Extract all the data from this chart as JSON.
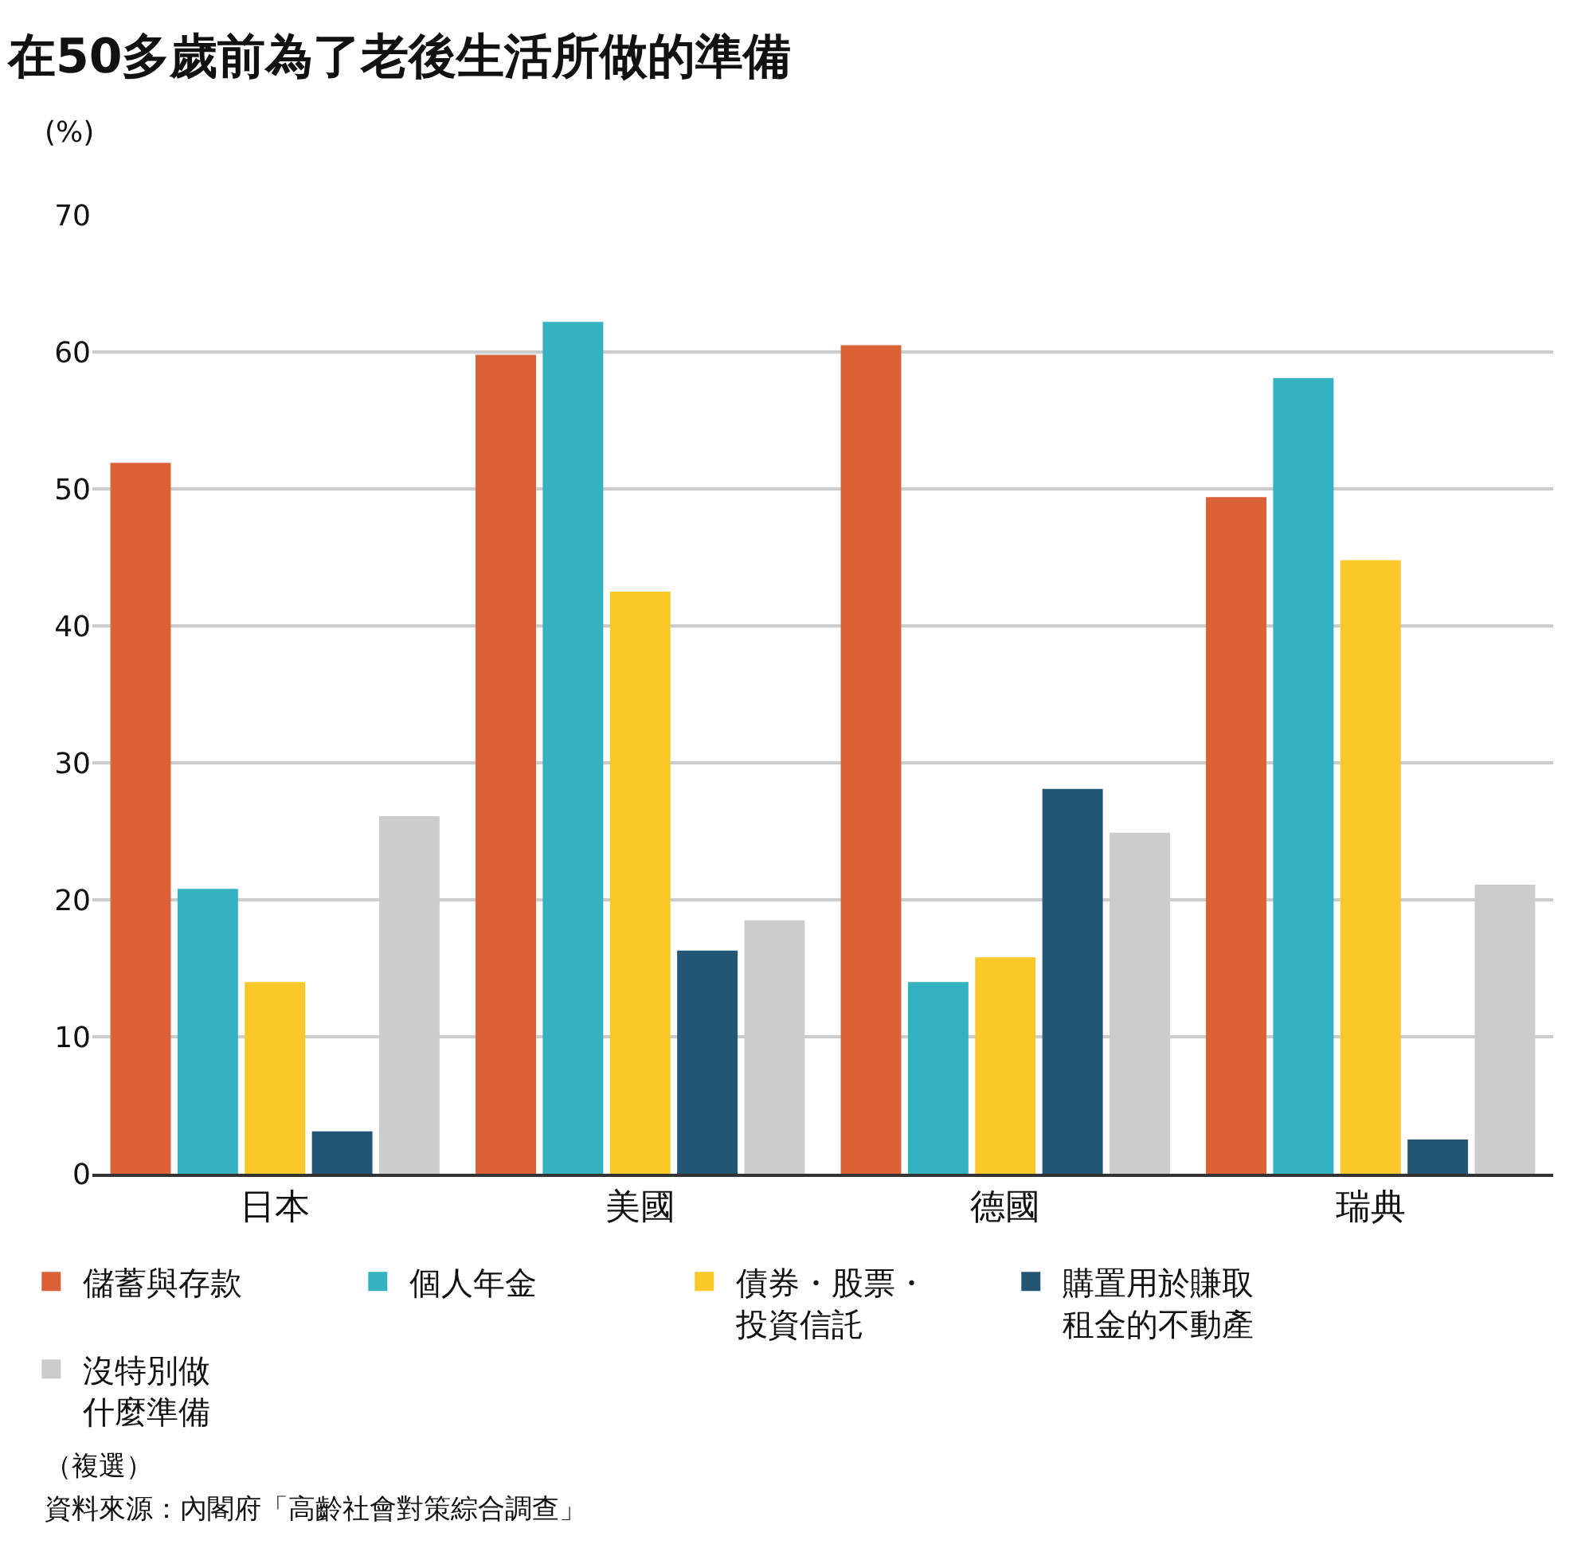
{
  "chart_data": {
    "type": "bar",
    "title": "在50多歲前為了老後生活所做的準備",
    "ylabel": "(%)",
    "categories": [
      "日本",
      "美國",
      "德國",
      "瑞典"
    ],
    "series": [
      {
        "name": "儲蓄與存款",
        "color": "#db6136",
        "values": [
          51.9,
          59.8,
          60.5,
          49.4
        ]
      },
      {
        "name": "個人年金",
        "color": "#33b2c0",
        "values": [
          20.8,
          62.2,
          14.0,
          58.1
        ]
      },
      {
        "name": "債券・股票・投資信託",
        "color": "#f8c928",
        "values": [
          14.0,
          42.5,
          15.8,
          44.8
        ]
      },
      {
        "name": "購置用於賺取租金的不動產",
        "color": "#245675",
        "values": [
          3.1,
          16.3,
          28.1,
          2.5
        ]
      },
      {
        "name": "沒特別做什麼準備",
        "color": "#cccccc",
        "values": [
          26.1,
          18.5,
          24.9,
          21.1
        ]
      }
    ],
    "ylim": [
      0,
      70
    ],
    "yticks": [
      0,
      10,
      20,
      30,
      40,
      50,
      60,
      70
    ],
    "grid": "y",
    "legend": "bottom",
    "annotations": [
      "（複選）",
      "資料來源：內閣府「高齡社會對策綜合調查」"
    ]
  }
}
